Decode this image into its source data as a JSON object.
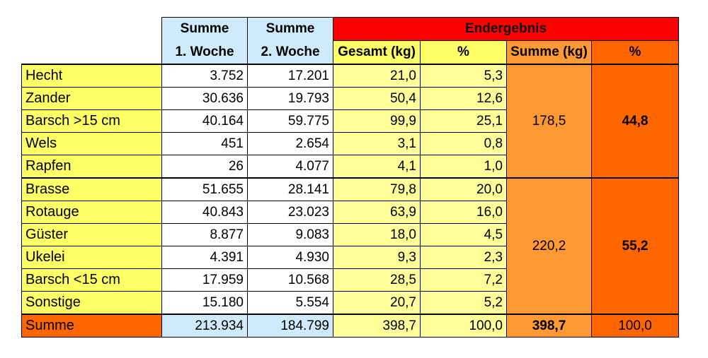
{
  "header": {
    "week1_line1": "Summe",
    "week1_line2": "1. Woche",
    "week2_line1": "Summe",
    "week2_line2": "2. Woche",
    "endergebnis": "Endergebnis",
    "gesamt": "Gesamt (kg)",
    "percent": "%",
    "summe_kg": "Summe (kg)",
    "percent2": "%"
  },
  "rows": [
    {
      "name": "Hecht",
      "w1": "3.752",
      "w2": "17.201",
      "gesamt": "21,0",
      "pct": "5,3"
    },
    {
      "name": "Zander",
      "w1": "30.636",
      "w2": "19.793",
      "gesamt": "50,4",
      "pct": "12,6"
    },
    {
      "name": "Barsch >15 cm",
      "w1": "40.164",
      "w2": "59.775",
      "gesamt": "99,9",
      "pct": "25,1"
    },
    {
      "name": "Wels",
      "w1": "451",
      "w2": "2.654",
      "gesamt": "3,1",
      "pct": "0,8"
    },
    {
      "name": "Rapfen",
      "w1": "26",
      "w2": "4.077",
      "gesamt": "4,1",
      "pct": "1,0"
    },
    {
      "name": "Brasse",
      "w1": "51.655",
      "w2": "28.141",
      "gesamt": "79,8",
      "pct": "20,0"
    },
    {
      "name": "Rotauge",
      "w1": "40.843",
      "w2": "23.023",
      "gesamt": "63,9",
      "pct": "16,0"
    },
    {
      "name": "Güster",
      "w1": "8.877",
      "w2": "9.083",
      "gesamt": "18,0",
      "pct": "4,5"
    },
    {
      "name": "Ukelei",
      "w1": "4.391",
      "w2": "4.930",
      "gesamt": "9,3",
      "pct": "2,3"
    },
    {
      "name": "Barsch <15 cm",
      "w1": "17.959",
      "w2": "10.568",
      "gesamt": "28,5",
      "pct": "7,2"
    },
    {
      "name": "Sonstige",
      "w1": "15.180",
      "w2": "5.554",
      "gesamt": "20,7",
      "pct": "5,2"
    }
  ],
  "groups": [
    {
      "sum_kg": "178,5",
      "pct": "44,8"
    },
    {
      "sum_kg": "220,2",
      "pct": "55,2"
    }
  ],
  "total": {
    "label": "Summe",
    "w1": "213.934",
    "w2": "184.799",
    "gesamt": "398,7",
    "pct": "100,0",
    "sum_kg": "398,7",
    "pct2": "100,0"
  }
}
